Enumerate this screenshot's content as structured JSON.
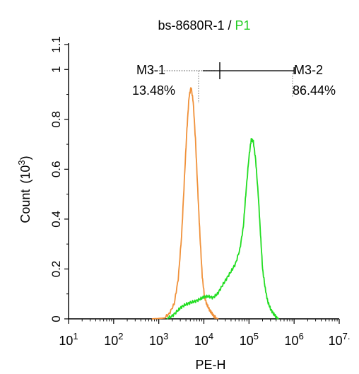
{
  "chart_data": {
    "type": "line",
    "title": {
      "sample": "bs-8680R-1 / ",
      "gate": "P1",
      "gate_color": "#22cc22"
    },
    "xlabel": "PE-H",
    "ylabel": "Count",
    "ylabel_unit_base": "(10",
    "ylabel_unit_exp": "3",
    "ylabel_unit_close": ")",
    "x_scale": "log",
    "xlim": [
      10,
      10000000
    ],
    "ylim": [
      0,
      1.1
    ],
    "x_ticks": [
      {
        "base": "10",
        "exp": "1",
        "value": 10
      },
      {
        "base": "10",
        "exp": "2",
        "value": 100
      },
      {
        "base": "10",
        "exp": "3",
        "value": 1000
      },
      {
        "base": "10",
        "exp": "4",
        "value": 10000
      },
      {
        "base": "10",
        "exp": "5",
        "value": 100000
      },
      {
        "base": "10",
        "exp": "6",
        "value": 1000000
      },
      {
        "base": "10",
        "exp": "7.",
        "value": 10000000
      }
    ],
    "y_ticks": [
      "0",
      "0.2",
      "0.4",
      "0.6",
      "0.8",
      "1",
      "1.1"
    ],
    "y_tick_values": [
      0,
      0.2,
      0.4,
      0.6,
      0.8,
      1.0,
      1.1
    ],
    "series": [
      {
        "color": "#f0913a",
        "x": [
          700,
          1300,
          1700,
          2200,
          2700,
          3200,
          3700,
          4200,
          4700,
          5200,
          5800,
          6500,
          7300,
          8200,
          9200,
          10300,
          11500,
          13000,
          14600,
          16500,
          18500,
          21000
        ],
        "y": [
          0,
          0.003,
          0.02,
          0.06,
          0.16,
          0.33,
          0.56,
          0.76,
          0.89,
          0.93,
          0.87,
          0.72,
          0.52,
          0.33,
          0.17,
          0.09,
          0.06,
          0.04,
          0.025,
          0.012,
          0.004,
          0
        ]
      },
      {
        "color": "#22dd22",
        "x": [
          1500,
          2000,
          2600,
          3200,
          4000,
          5000,
          6300,
          8000,
          10000,
          12500,
          16000,
          20000,
          25000,
          31500,
          40000,
          50000,
          63000,
          75000,
          85000,
          100000,
          112000,
          125000,
          140000,
          160000,
          180000,
          200000,
          230000,
          260000,
          300000,
          350000,
          400000,
          460000
        ],
        "y": [
          0,
          0.012,
          0.032,
          0.048,
          0.058,
          0.065,
          0.07,
          0.078,
          0.088,
          0.09,
          0.085,
          0.1,
          0.13,
          0.16,
          0.19,
          0.22,
          0.28,
          0.37,
          0.5,
          0.65,
          0.72,
          0.71,
          0.64,
          0.5,
          0.34,
          0.2,
          0.12,
          0.07,
          0.04,
          0.02,
          0.008,
          0
        ]
      }
    ],
    "markers": [
      {
        "name": "M3-1",
        "percent": "13.48%",
        "x_start": 700,
        "x_end": 18000,
        "y": 0.995
      },
      {
        "name": "M3-2",
        "percent": "86.44%",
        "x_start": 18000,
        "x_end": 1000000,
        "y": 0.995
      }
    ],
    "colors": {
      "axis": "#000000",
      "marker_line": "#000000",
      "marker_dotted": "#666666"
    }
  }
}
